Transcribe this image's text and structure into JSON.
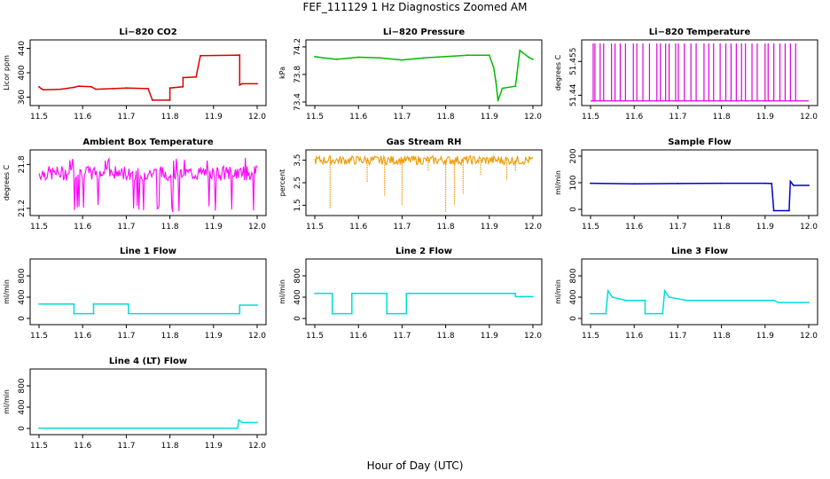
{
  "page": {
    "title": "FEF_111129  1 Hz Diagnostics Zoomed AM",
    "x_axis_label": "Hour of Day (UTC)"
  },
  "chart_data": [
    {
      "type": "line",
      "title": "Li−820 CO2",
      "ylabel": "Licor ppm",
      "color": "#dd0000",
      "xlim": [
        11.5,
        12.0
      ],
      "ylim": [
        352,
        448
      ],
      "xticks": [
        "11.5",
        "11.6",
        "11.7",
        "11.8",
        "11.9",
        "12.0"
      ],
      "yticks": [
        360,
        400,
        440
      ],
      "series": [
        {
          "x": [
            11.5,
            11.505,
            11.51,
            11.55,
            11.58,
            11.59,
            11.62,
            11.63,
            11.67,
            11.7,
            11.75,
            11.76,
            11.8,
            11.8,
            11.83,
            11.83,
            11.86,
            11.87,
            11.96,
            11.96,
            11.965,
            12.0
          ],
          "y": [
            377,
            374,
            372,
            373,
            376,
            378,
            377,
            373,
            374,
            375,
            374,
            355,
            355,
            375,
            377,
            392,
            393,
            428,
            429,
            380,
            382,
            382
          ]
        }
      ]
    },
    {
      "type": "line",
      "title": "Li−820 Pressure",
      "ylabel": "kPa",
      "color": "#00bb00",
      "xlim": [
        11.5,
        12.0
      ],
      "ylim": [
        73.4,
        74.25
      ],
      "xticks": [
        "11.5",
        "11.6",
        "11.7",
        "11.8",
        "11.9",
        "12.0"
      ],
      "yticks": [
        73.4,
        73.8,
        74.2
      ],
      "series": [
        {
          "x": [
            11.5,
            11.52,
            11.55,
            11.6,
            11.65,
            11.7,
            11.75,
            11.8,
            11.85,
            11.9,
            11.91,
            11.915,
            11.92,
            11.93,
            11.96,
            11.97,
            11.99,
            12.0
          ],
          "y": [
            74.06,
            74.04,
            74.02,
            74.05,
            74.04,
            74.01,
            74.04,
            74.06,
            74.08,
            74.08,
            73.9,
            73.7,
            73.42,
            73.6,
            73.63,
            74.15,
            74.05,
            74.02
          ]
        }
      ]
    },
    {
      "type": "line",
      "title": "Li−820 Temperature",
      "ylabel": "degrees C",
      "color": "#dd00dd",
      "xlim": [
        11.5,
        12.0
      ],
      "ylim": [
        51.437,
        51.463
      ],
      "xticks": [
        "11.5",
        "11.6",
        "11.7",
        "11.8",
        "11.9",
        "12.0"
      ],
      "yticks": [
        51.44,
        51.455
      ],
      "base": 51.4375,
      "spike": 51.463,
      "spikes_x": [
        11.506,
        11.51,
        11.522,
        11.53,
        11.548,
        11.556,
        11.568,
        11.58,
        11.598,
        11.606,
        11.62,
        11.635,
        11.652,
        11.66,
        11.672,
        11.68,
        11.695,
        11.701,
        11.715,
        11.73,
        11.742,
        11.76,
        11.771,
        11.782,
        11.797,
        11.81,
        11.822,
        11.834,
        11.846,
        11.855,
        11.87,
        11.882,
        11.9,
        11.907,
        11.92,
        11.934,
        11.946,
        11.958,
        11.97
      ]
    },
    {
      "type": "line",
      "title": "Ambient Box Temperature",
      "ylabel": "degrees C",
      "color": "#ff00ff",
      "xlim": [
        11.5,
        12.0
      ],
      "ylim": [
        21.15,
        21.95
      ],
      "xticks": [
        "11.5",
        "11.6",
        "11.7",
        "11.8",
        "11.9",
        "12.0"
      ],
      "yticks": [
        21.2,
        21.8
      ],
      "noise": {
        "band": [
          21.58,
          21.78
        ],
        "center": 21.68,
        "outliers_low": [
          21.15,
          21.25
        ],
        "outliers_high": [
          21.85,
          21.9
        ]
      }
    },
    {
      "type": "line",
      "title": "Gas Stream RH",
      "ylabel": "percent",
      "color": "#ee9900",
      "xlim": [
        11.5,
        12.0
      ],
      "ylim": [
        1.2,
        3.8
      ],
      "xticks": [
        "11.5",
        "11.6",
        "11.7",
        "11.8",
        "11.9",
        "12.0"
      ],
      "yticks": [
        1.5,
        2.5,
        3.5
      ],
      "noise": {
        "band": [
          3.3,
          3.7
        ],
        "center": 3.5,
        "dips": [
          [
            11.535,
            1.35
          ],
          [
            11.62,
            2.5
          ],
          [
            11.66,
            1.9
          ],
          [
            11.7,
            1.5
          ],
          [
            11.76,
            3.0
          ],
          [
            11.8,
            1.2
          ],
          [
            11.82,
            1.5
          ],
          [
            11.84,
            2.0
          ],
          [
            11.88,
            2.8
          ],
          [
            11.94,
            2.6
          ],
          [
            11.96,
            3.0
          ]
        ]
      }
    },
    {
      "type": "line",
      "title": "Sample Flow",
      "ylabel": "ml/min",
      "color": "#0000cc",
      "xlim": [
        11.5,
        12.0
      ],
      "ylim": [
        -10,
        210
      ],
      "xticks": [
        "11.5",
        "11.6",
        "11.7",
        "11.8",
        "11.9",
        "12.0"
      ],
      "yticks": [
        0,
        100,
        200
      ],
      "series": [
        {
          "x": [
            11.5,
            11.6,
            11.7,
            11.8,
            11.9,
            11.915,
            11.92,
            11.955,
            11.958,
            11.965,
            12.0
          ],
          "y": [
            98,
            96,
            97,
            98,
            98,
            97,
            -5,
            -5,
            105,
            90,
            90
          ]
        }
      ]
    },
    {
      "type": "line",
      "title": "Line 1 Flow",
      "ylabel": "ml/min",
      "color": "#00dddd",
      "xlim": [
        11.5,
        12.0
      ],
      "ylim": [
        -50,
        1050
      ],
      "xticks": [
        "11.5",
        "11.6",
        "11.7",
        "11.8",
        "11.9",
        "12.0"
      ],
      "yticks": [
        0,
        400,
        800
      ],
      "series": [
        {
          "x": [
            11.5,
            11.58,
            11.58,
            11.625,
            11.625,
            11.705,
            11.705,
            11.96,
            11.96,
            12.0
          ],
          "y": [
            270,
            270,
            90,
            90,
            270,
            270,
            90,
            90,
            250,
            250
          ]
        }
      ]
    },
    {
      "type": "line",
      "title": "Line 2 Flow",
      "ylabel": "ml/min",
      "color": "#00dddd",
      "xlim": [
        11.5,
        12.0
      ],
      "ylim": [
        -50,
        1050
      ],
      "xticks": [
        "11.5",
        "11.6",
        "11.7",
        "11.8",
        "11.9",
        "12.0"
      ],
      "yticks": [
        0,
        400,
        800
      ],
      "series": [
        {
          "x": [
            11.5,
            11.54,
            11.54,
            11.585,
            11.585,
            11.665,
            11.665,
            11.71,
            11.71,
            11.96,
            11.96,
            12.0
          ],
          "y": [
            470,
            470,
            90,
            90,
            470,
            470,
            90,
            90,
            470,
            470,
            410,
            410
          ]
        }
      ]
    },
    {
      "type": "line",
      "title": "Line 3 Flow",
      "ylabel": "ml/min",
      "color": "#00dddd",
      "xlim": [
        11.5,
        12.0
      ],
      "ylim": [
        -50,
        1050
      ],
      "xticks": [
        "11.5",
        "11.6",
        "11.7",
        "11.8",
        "11.9",
        "12.0"
      ],
      "yticks": [
        0,
        400,
        800
      ],
      "series": [
        {
          "x": [
            11.5,
            11.535,
            11.54,
            11.55,
            11.58,
            11.625,
            11.625,
            11.665,
            11.67,
            11.68,
            11.72,
            11.92,
            11.93,
            12.0
          ],
          "y": [
            90,
            90,
            520,
            400,
            340,
            340,
            90,
            90,
            520,
            400,
            340,
            340,
            300,
            300
          ]
        }
      ]
    },
    {
      "type": "line",
      "title": "Line 4 (LT) Flow",
      "ylabel": "ml/min",
      "color": "#00dddd",
      "xlim": [
        11.5,
        12.0
      ],
      "ylim": [
        -50,
        1050
      ],
      "xticks": [
        "11.5",
        "11.6",
        "11.7",
        "11.8",
        "11.9",
        "12.0"
      ],
      "yticks": [
        0,
        400,
        800
      ],
      "series": [
        {
          "x": [
            11.5,
            11.955,
            11.958,
            11.965,
            12.0
          ],
          "y": [
            5,
            5,
            160,
            110,
            110
          ]
        }
      ]
    }
  ]
}
